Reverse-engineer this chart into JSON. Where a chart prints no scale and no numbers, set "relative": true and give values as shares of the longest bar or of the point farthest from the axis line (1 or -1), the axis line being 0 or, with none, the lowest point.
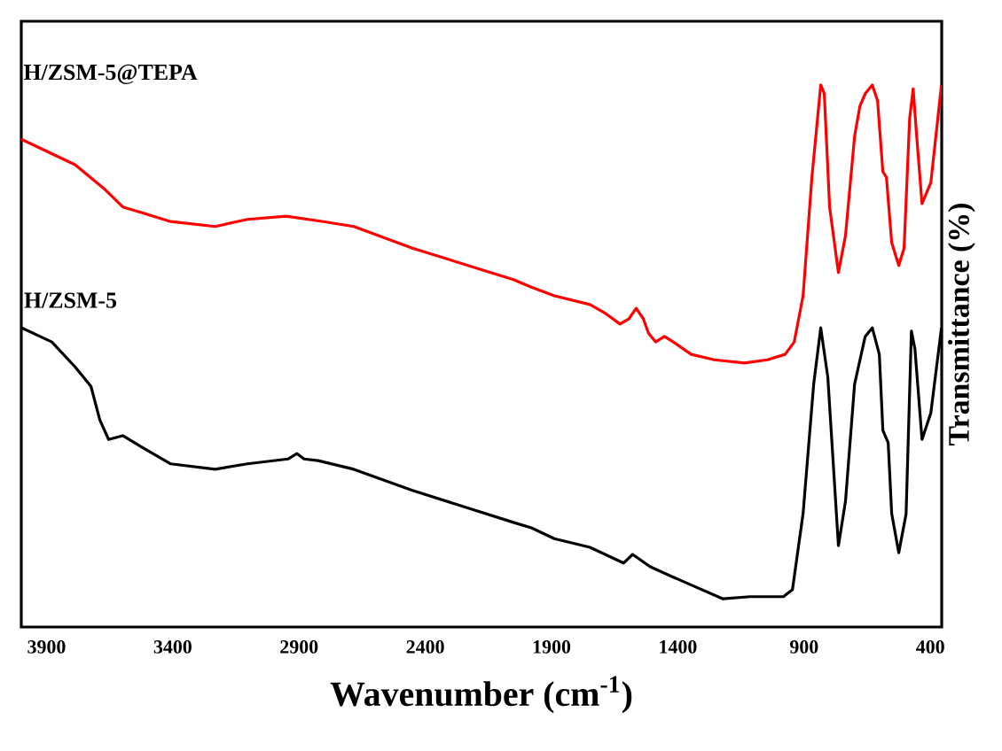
{
  "chart_data": {
    "type": "line",
    "relative": true,
    "xlabel": "Wavenumber (cm$^{-1}$)",
    "ylabel": "Transmittance (%)",
    "xlim": [
      4000,
      355
    ],
    "xticks": [
      3900,
      3400,
      2900,
      2400,
      1900,
      1400,
      900,
      400
    ],
    "series": [
      {
        "name": "H/ZSM-5@TEPA",
        "color": "#ff0000",
        "x": [
          4000,
          3937,
          3787,
          3668,
          3598,
          3527,
          3408,
          3232,
          3105,
          2951,
          2803,
          2683,
          2451,
          2051,
          1980,
          1889,
          1748,
          1685,
          1629,
          1593,
          1565,
          1537,
          1516,
          1488,
          1453,
          1418,
          1347,
          1256,
          1136,
          1045,
          975,
          939,
          904,
          869,
          834,
          820,
          799,
          764,
          736,
          700,
          679,
          658,
          630,
          609,
          588,
          574,
          553,
          525,
          504,
          482,
          468,
          454,
          433,
          398,
          356
        ],
        "values": [
          0.9,
          0.886,
          0.853,
          0.807,
          0.775,
          0.765,
          0.748,
          0.739,
          0.752,
          0.758,
          0.748,
          0.739,
          0.699,
          0.641,
          0.627,
          0.611,
          0.595,
          0.578,
          0.559,
          0.569,
          0.588,
          0.569,
          0.542,
          0.526,
          0.536,
          0.526,
          0.503,
          0.493,
          0.487,
          0.493,
          0.503,
          0.526,
          0.611,
          0.83,
          1.0,
          0.984,
          0.775,
          0.654,
          0.722,
          0.905,
          0.961,
          0.984,
          1.0,
          0.971,
          0.84,
          0.83,
          0.709,
          0.667,
          0.699,
          0.938,
          0.993,
          0.905,
          0.781,
          0.82,
          1.0
        ]
      },
      {
        "name": "H/ZSM-5",
        "color": "#000000",
        "x": [
          3998,
          3879,
          3787,
          3724,
          3689,
          3654,
          3598,
          3527,
          3408,
          3232,
          3105,
          2944,
          2908,
          2880,
          2824,
          2683,
          2451,
          2051,
          1980,
          1889,
          1748,
          1615,
          1579,
          1509,
          1418,
          1221,
          1115,
          982,
          946,
          904,
          862,
          834,
          806,
          764,
          736,
          700,
          658,
          630,
          602,
          588,
          567,
          553,
          525,
          496,
          475,
          461,
          433,
          398,
          356
        ],
        "values": [
          0.552,
          0.526,
          0.48,
          0.444,
          0.382,
          0.346,
          0.353,
          0.333,
          0.301,
          0.291,
          0.301,
          0.31,
          0.32,
          0.31,
          0.307,
          0.291,
          0.252,
          0.193,
          0.183,
          0.163,
          0.147,
          0.118,
          0.134,
          0.111,
          0.092,
          0.052,
          0.056,
          0.056,
          0.069,
          0.209,
          0.448,
          0.552,
          0.461,
          0.15,
          0.232,
          0.448,
          0.536,
          0.552,
          0.503,
          0.363,
          0.34,
          0.209,
          0.137,
          0.209,
          0.546,
          0.513,
          0.346,
          0.395,
          0.552
        ]
      }
    ]
  }
}
